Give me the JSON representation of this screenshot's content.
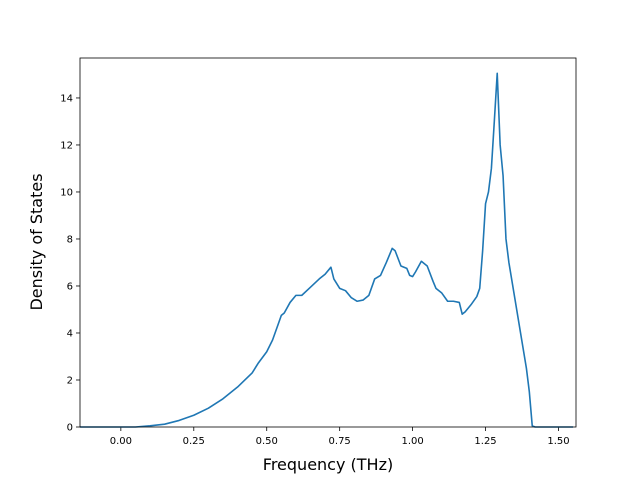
{
  "chart_data": {
    "type": "line",
    "title": "",
    "xlabel": "Frequency (THz)",
    "ylabel": "Density of States",
    "xlim": [
      -0.14,
      1.56
    ],
    "ylim": [
      0,
      15.7
    ],
    "xticks": [
      0.0,
      0.25,
      0.5,
      0.75,
      1.0,
      1.25,
      1.5
    ],
    "xtick_labels": [
      "0.00",
      "0.25",
      "0.50",
      "0.75",
      "1.00",
      "1.25",
      "1.50"
    ],
    "yticks": [
      0,
      2,
      4,
      6,
      8,
      10,
      12,
      14
    ],
    "ytick_labels": [
      "0",
      "2",
      "4",
      "6",
      "8",
      "10",
      "12",
      "14"
    ],
    "grid": false,
    "line_color": "#1f77b4",
    "series": [
      {
        "x": [
          -0.14,
          -0.05,
          0.0,
          0.05,
          0.1,
          0.15,
          0.2,
          0.25,
          0.3,
          0.35,
          0.4,
          0.45,
          0.47,
          0.5,
          0.52,
          0.54,
          0.55,
          0.56,
          0.58,
          0.6,
          0.62,
          0.65,
          0.68,
          0.7,
          0.72,
          0.73,
          0.75,
          0.77,
          0.79,
          0.81,
          0.83,
          0.85,
          0.87,
          0.89,
          0.91,
          0.93,
          0.94,
          0.96,
          0.98,
          0.99,
          1.0,
          1.01,
          1.03,
          1.05,
          1.07,
          1.08,
          1.1,
          1.12,
          1.14,
          1.16,
          1.17,
          1.18,
          1.2,
          1.22,
          1.23,
          1.24,
          1.25,
          1.26,
          1.27,
          1.28,
          1.29,
          1.3,
          1.31,
          1.32,
          1.33,
          1.35,
          1.37,
          1.39,
          1.4,
          1.41,
          1.42,
          1.45,
          1.5,
          1.55
        ],
        "y": [
          0.0,
          0.0,
          0.0,
          0.0,
          0.05,
          0.12,
          0.28,
          0.5,
          0.8,
          1.2,
          1.7,
          2.3,
          2.7,
          3.2,
          3.7,
          4.4,
          4.75,
          4.85,
          5.3,
          5.6,
          5.6,
          5.95,
          6.3,
          6.5,
          6.8,
          6.3,
          5.9,
          5.8,
          5.5,
          5.35,
          5.4,
          5.6,
          6.3,
          6.45,
          7.0,
          7.6,
          7.5,
          6.85,
          6.75,
          6.45,
          6.4,
          6.6,
          7.05,
          6.85,
          6.2,
          5.9,
          5.7,
          5.35,
          5.35,
          5.3,
          4.8,
          4.9,
          5.2,
          5.55,
          5.9,
          7.5,
          9.5,
          10.0,
          11.0,
          13.0,
          15.05,
          12.0,
          10.7,
          8.0,
          7.0,
          5.5,
          4.0,
          2.5,
          1.5,
          0.05,
          0.0,
          0.0,
          0.0,
          0.0
        ]
      }
    ]
  }
}
